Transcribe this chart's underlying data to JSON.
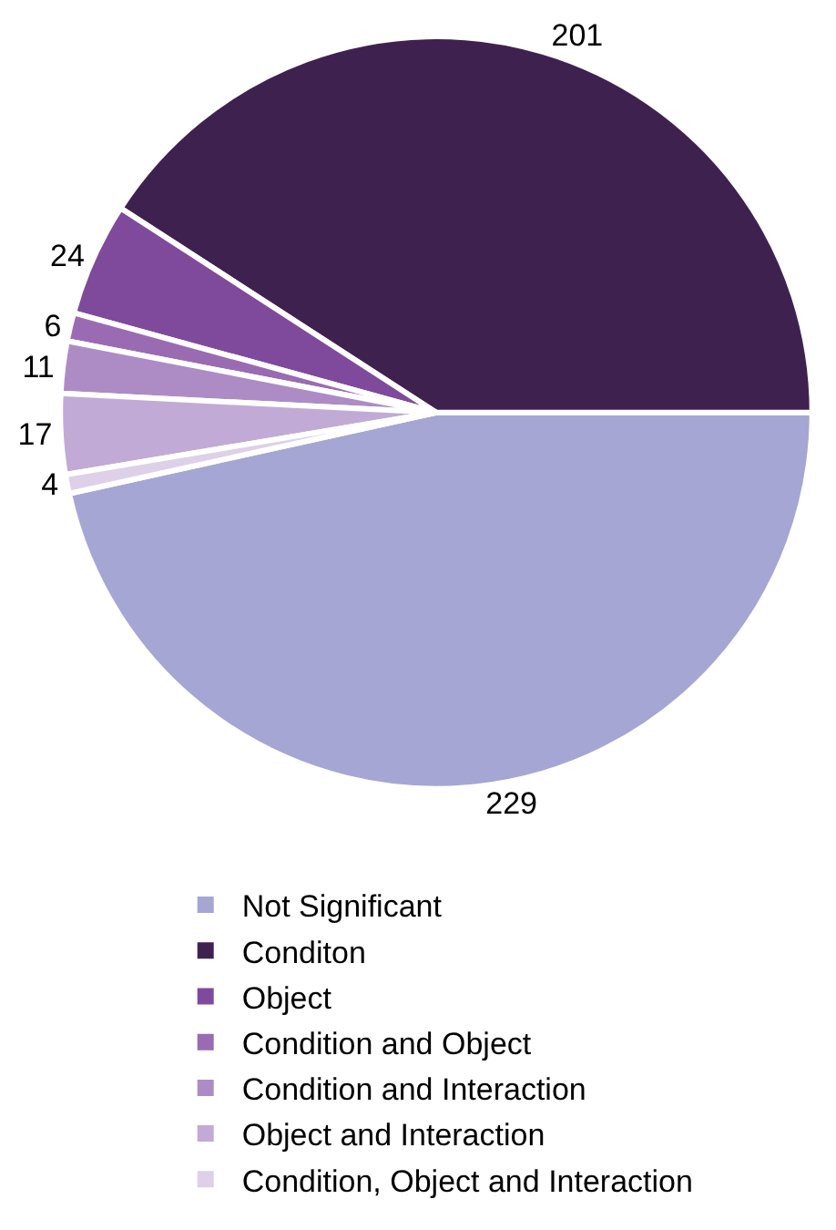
{
  "chart_data": {
    "type": "pie",
    "categories": [
      "Not Significant",
      "Conditon",
      "Object",
      "Condition and Object",
      "Condition and Interaction",
      "Object and Interaction",
      "Condition, Object and Interaction"
    ],
    "values": [
      229,
      201,
      24,
      6,
      11,
      17,
      4
    ],
    "colors": [
      "#a6a6d4",
      "#3f2150",
      "#7f4a9c",
      "#9a6bb2",
      "#ad8cc5",
      "#c2aad6",
      "#ddd0e8"
    ],
    "data_labels": true,
    "legend": "bottom"
  }
}
